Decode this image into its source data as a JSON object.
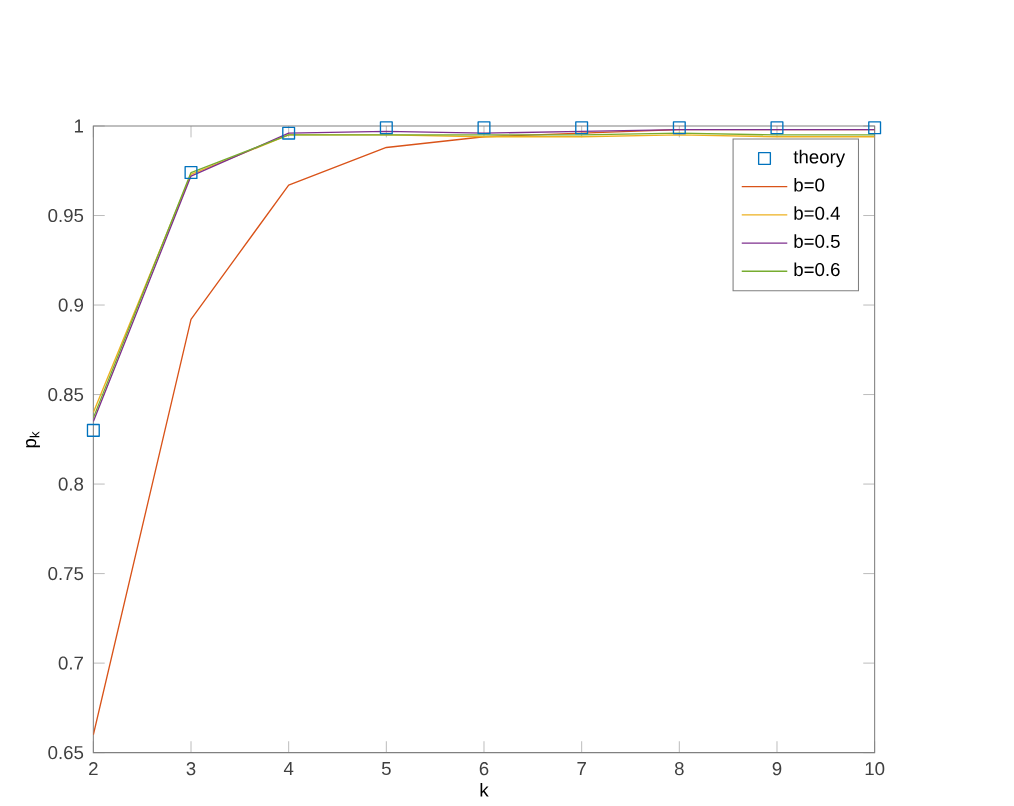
{
  "chart_data": {
    "type": "line",
    "xlabel": "k",
    "ylabel": "p$_{k}$",
    "x": [
      2,
      3,
      4,
      5,
      6,
      7,
      8,
      9,
      10
    ],
    "xlim": [
      2,
      10
    ],
    "xticks": [
      2,
      3,
      4,
      5,
      6,
      7,
      8,
      9,
      10
    ],
    "ylim": [
      0.65,
      1
    ],
    "yticks": [
      0.65,
      0.7,
      0.75,
      0.8,
      0.85,
      0.9,
      0.95,
      1
    ],
    "legend": "top right",
    "grid": false,
    "series": [
      {
        "name": "theory",
        "type": "scatter",
        "marker": "square",
        "color": "#0072bd",
        "values": [
          0.83,
          0.974,
          0.996,
          0.999,
          0.999,
          0.999,
          0.999,
          0.999,
          0.999
        ]
      },
      {
        "name": "b=0",
        "color": "#d95319",
        "values": [
          0.66,
          0.892,
          0.967,
          0.988,
          0.994,
          0.996,
          0.998,
          0.998,
          0.998
        ]
      },
      {
        "name": "b=0.4",
        "color": "#edb120",
        "values": [
          0.84,
          0.973,
          0.995,
          0.995,
          0.994,
          0.994,
          0.995,
          0.994,
          0.994
        ]
      },
      {
        "name": "b=0.5",
        "color": "#7e2f8e",
        "values": [
          0.835,
          0.972,
          0.996,
          0.997,
          0.996,
          0.997,
          0.998,
          0.998,
          0.998
        ]
      },
      {
        "name": "b=0.6",
        "color": "#77ac30",
        "values": [
          0.837,
          0.974,
          0.995,
          0.995,
          0.995,
          0.995,
          0.996,
          0.995,
          0.995
        ]
      }
    ]
  }
}
